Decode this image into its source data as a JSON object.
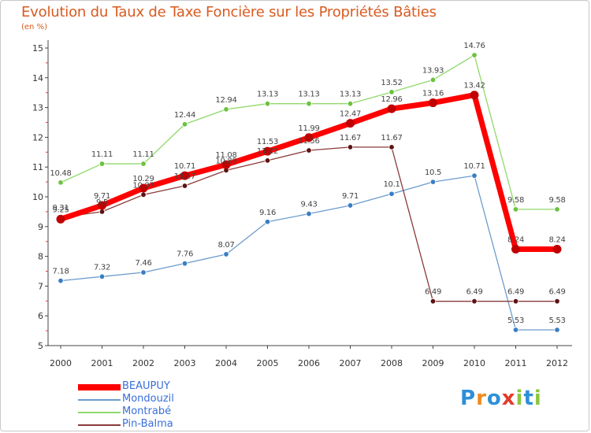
{
  "header": {
    "title": "Evolution du Taux de Taxe Foncière sur les Propriétés Bâties",
    "unit": "(en %)"
  },
  "logo": {
    "text": "Proxiti",
    "letter_colors": [
      "#2f8fd8",
      "#f08a1c",
      "#2f8fd8",
      "#e23b2b",
      "#8dc63f",
      "#2f8fd8",
      "#8dc63f"
    ]
  },
  "chart_data": {
    "type": "line",
    "title": "Evolution du Taux de Taxe Foncière sur les Propriétés Bâties",
    "ylabel": "(en %)",
    "xlabel": "",
    "categories": [
      "2000",
      "2001",
      "2002",
      "2003",
      "2004",
      "2005",
      "2006",
      "2007",
      "2008",
      "2009",
      "2010",
      "2011",
      "2012"
    ],
    "ylim": [
      5,
      15
    ],
    "yticks": [
      "5",
      "6",
      "7",
      "8",
      "9",
      "10",
      "11",
      "12",
      "13",
      "14",
      "15"
    ],
    "grid": false,
    "legend_position": "bottom-left",
    "series": [
      {
        "name": "BEAUPUY",
        "color": "#ff0000",
        "point_color": "#c00000",
        "width": 7,
        "radius": 5.5,
        "values": [
          9.25,
          9.71,
          10.29,
          10.71,
          11.08,
          11.53,
          11.99,
          12.47,
          12.96,
          13.16,
          13.42,
          8.24,
          8.24
        ],
        "labels": [
          "9.25",
          "9.71",
          "10.29",
          "10.71",
          "11.08",
          "11.53",
          "11.99",
          "12.47",
          "12.96",
          "13.16",
          "13.42",
          "8.24",
          "8.24"
        ]
      },
      {
        "name": "Mondouzil",
        "color": "#6c9ccc",
        "point_color": "#3a7ec4",
        "width": 1.3,
        "radius": 3.3,
        "values": [
          7.18,
          7.32,
          7.46,
          7.76,
          8.07,
          9.16,
          9.43,
          9.71,
          10.1,
          10.5,
          10.71,
          5.53,
          5.53
        ],
        "labels": [
          "7.18",
          "7.32",
          "7.46",
          "7.76",
          "8.07",
          "9.16",
          "9.43",
          "9.71",
          "10.1",
          "10.5",
          "10.71",
          "5.53",
          "5.53"
        ]
      },
      {
        "name": "Montrabé",
        "color": "#8fd96a",
        "point_color": "#6cc23f",
        "width": 1.3,
        "radius": 3.3,
        "values": [
          10.48,
          11.11,
          11.11,
          12.44,
          12.94,
          13.13,
          13.13,
          13.13,
          13.52,
          13.93,
          14.76,
          9.58,
          9.58
        ],
        "labels": [
          "10.48",
          "11.11",
          "11.11",
          "12.44",
          "12.94",
          "13.13",
          "13.13",
          "13.13",
          "13.52",
          "13.93",
          "14.76",
          "9.58",
          "9.58"
        ]
      },
      {
        "name": "Pin-Balma",
        "color": "#8a3a3a",
        "point_color": "#5e1212",
        "width": 1.3,
        "radius": 3.3,
        "values": [
          9.31,
          9.5,
          10.07,
          10.37,
          10.89,
          11.22,
          11.56,
          11.67,
          11.67,
          6.49,
          6.49,
          6.49,
          6.49
        ],
        "labels": [
          "9.31",
          "9.5",
          "10.07",
          "10.37",
          "10.89",
          "11.22",
          "11.56",
          "11.67",
          "11.67",
          "6.49",
          "6.49",
          "6.49",
          "6.49"
        ]
      }
    ]
  }
}
